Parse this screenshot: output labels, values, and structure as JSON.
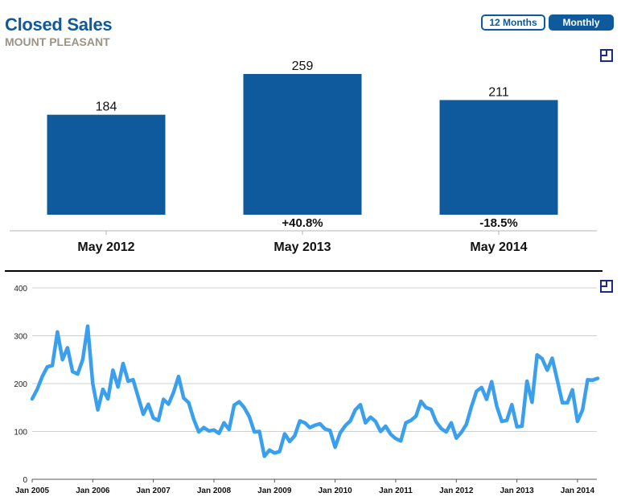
{
  "header": {
    "title": "Closed Sales",
    "subtitle": "MOUNT PLEASANT"
  },
  "toggles": {
    "twelve_months": "12 Months",
    "monthly": "Monthly"
  },
  "icons": {
    "top_expand": "expand-icon",
    "bottom_expand": "expand-icon"
  },
  "colors": {
    "brand": "#0e5a9c",
    "line": "#3aa0ee",
    "subtitle": "#9a9386"
  },
  "chart_data": [
    {
      "type": "bar",
      "categories": [
        "May 2012",
        "May 2013",
        "May 2014"
      ],
      "values": [
        184,
        259,
        211
      ],
      "changes": [
        "",
        "+40.8%",
        "-18.5%"
      ],
      "ylim": [
        0,
        259
      ]
    },
    {
      "type": "line",
      "x_start": "2005-01",
      "x_tick_labels": [
        "Jan 2005",
        "Jan 2006",
        "Jan 2007",
        "Jan 2008",
        "Jan 2009",
        "Jan 2010",
        "Jan 2011",
        "Jan 2012",
        "Jan 2013",
        "Jan 2014"
      ],
      "y_ticks": [
        0,
        100,
        200,
        300,
        400
      ],
      "ylim": [
        0,
        400
      ],
      "values": [
        168,
        188,
        215,
        235,
        238,
        308,
        250,
        275,
        225,
        220,
        250,
        320,
        200,
        145,
        188,
        168,
        228,
        193,
        242,
        205,
        208,
        172,
        136,
        157,
        128,
        123,
        167,
        157,
        182,
        215,
        170,
        160,
        125,
        99,
        108,
        101,
        103,
        96,
        118,
        104,
        155,
        162,
        150,
        131,
        99,
        100,
        48,
        61,
        55,
        58,
        95,
        79,
        91,
        122,
        118,
        108,
        113,
        116,
        105,
        102,
        67,
        97,
        112,
        122,
        145,
        156,
        118,
        130,
        121,
        100,
        111,
        94,
        85,
        80,
        118,
        123,
        132,
        163,
        150,
        146,
        120,
        106,
        99,
        118,
        86,
        98,
        115,
        152,
        184,
        192,
        167,
        204,
        153,
        121,
        123,
        156,
        110,
        111,
        205,
        161,
        260,
        252,
        228,
        253,
        207,
        160,
        160,
        187,
        121,
        145,
        208,
        207,
        211
      ]
    }
  ]
}
